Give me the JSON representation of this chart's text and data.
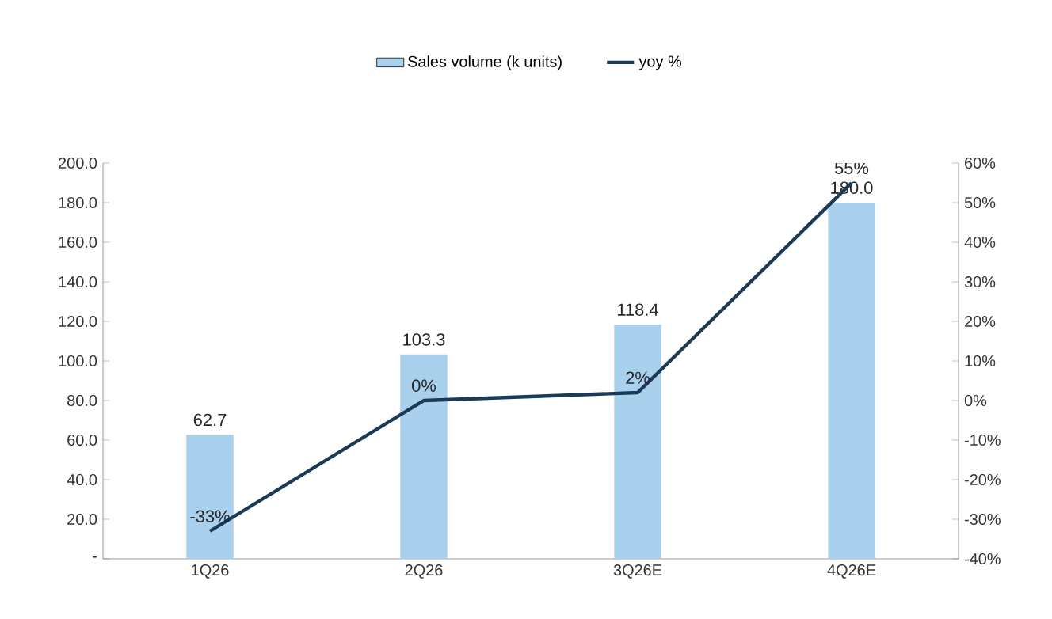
{
  "chart_data": {
    "type": "bar",
    "categories": [
      "1Q26",
      "2Q26",
      "3Q26E",
      "4Q26E"
    ],
    "series": [
      {
        "name": "Sales volume (k units)",
        "color": "#a9d1ee",
        "values": [
          62.7,
          103.3,
          118.4,
          180.0
        ],
        "value_labels": [
          "62.7",
          "103.3",
          "118.4",
          "180.0"
        ]
      },
      {
        "name": "yoy %",
        "type": "line",
        "axis": "y2",
        "color": "#1b3a57",
        "values": [
          -33,
          0,
          2,
          55
        ],
        "value_labels": [
          "-33%",
          "0%",
          "2%",
          "55%"
        ]
      }
    ],
    "ylim": [
      0,
      200
    ],
    "yticks": [
      {
        "value": 0,
        "label": "-"
      },
      {
        "value": 20,
        "label": "20.0"
      },
      {
        "value": 40,
        "label": "40.0"
      },
      {
        "value": 60,
        "label": "60.0"
      },
      {
        "value": 80,
        "label": "80.0"
      },
      {
        "value": 100,
        "label": "100.0"
      },
      {
        "value": 120,
        "label": "120.0"
      },
      {
        "value": 140,
        "label": "140.0"
      },
      {
        "value": 160,
        "label": "160.0"
      },
      {
        "value": 180,
        "label": "180.0"
      },
      {
        "value": 200,
        "label": "200.0"
      }
    ],
    "y2lim": [
      -40,
      60
    ],
    "y2ticks": [
      {
        "value": -40,
        "label": "-40%"
      },
      {
        "value": -30,
        "label": "-30%"
      },
      {
        "value": -20,
        "label": "-20%"
      },
      {
        "value": -10,
        "label": "-10%"
      },
      {
        "value": 0,
        "label": "0%"
      },
      {
        "value": 10,
        "label": "10%"
      },
      {
        "value": 20,
        "label": "20%"
      },
      {
        "value": 30,
        "label": "30%"
      },
      {
        "value": 40,
        "label": "40%"
      },
      {
        "value": 50,
        "label": "50%"
      },
      {
        "value": 60,
        "label": "60%"
      }
    ],
    "legend": "top",
    "grid": false,
    "marker": "none",
    "line_style": "solid"
  }
}
